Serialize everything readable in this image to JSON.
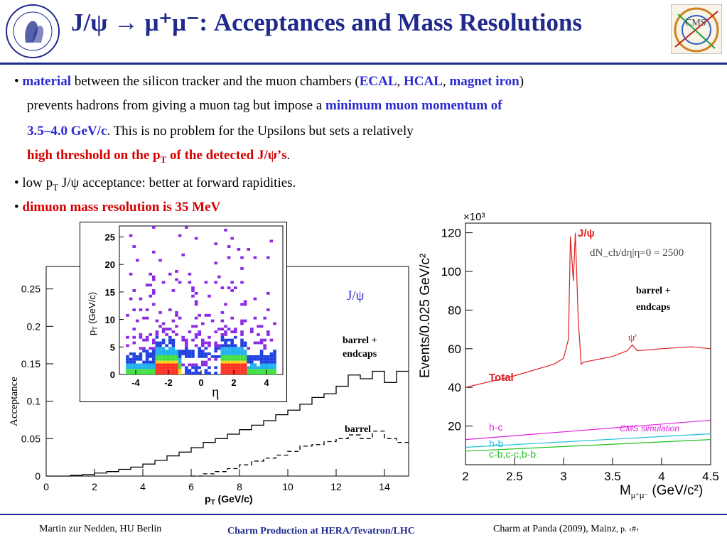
{
  "slide": {
    "title": "J/ψ → μ⁺μ⁻: Acceptances and Mass Resolutions",
    "logos": {
      "left": "humboldt-university-seal",
      "right": "cms-logo"
    }
  },
  "bullets": {
    "b1": {
      "bullet": "•",
      "material": "material",
      "t1": " between the silicon tracker and the muon chambers (",
      "ecal": "ECAL",
      "comma1": ", ",
      "hcal": "HCAL",
      "comma2": ", ",
      "magnet": "magnet iron",
      "close": ")",
      "line2a": "prevents hadrons from giving a muon tag but impose a ",
      "minmom": "minimum muon momentum of",
      "line3a": "3.5–4.0 GeV/c",
      "line3b": ". This is no problem for the Upsilons but sets a relatively",
      "line4a": "high threshold on the p",
      "line4sub": "T",
      "line4b": " of the detected J/ψ’s",
      "line4c": "."
    },
    "b2": {
      "bullet": "•",
      "t1": " low p",
      "sub": "T",
      "t2": " J/ψ acceptance: better at forward rapidities."
    },
    "b3": {
      "bullet": "•",
      "t1": " dimuon mass resolution is 35 MeV"
    }
  },
  "plots": {
    "acceptance": {
      "ylabel": "Acceptance",
      "xlabel_main": "p",
      "xlabel_sub": "T",
      "xlabel_tail": " (GeV/c)",
      "legend_jpsi": "J/ψ",
      "label_barrel_endcaps_1": "barrel +",
      "label_barrel_endcaps_2": "endcaps",
      "label_barrel": "barrel",
      "xticks": [
        "0",
        "2",
        "4",
        "6",
        "8",
        "10",
        "12",
        "14"
      ],
      "yticks": [
        "0",
        "0.05",
        "0.1",
        "0.15",
        "0.2",
        "0.25"
      ]
    },
    "inset": {
      "ylabel_main": "p",
      "ylabel_sub": "T",
      "ylabel_tail": " (GeV/c)",
      "xlabel": "η",
      "xticks": [
        "-4",
        "-2",
        "0",
        "2",
        "4"
      ],
      "yticks": [
        "0",
        "5",
        "10",
        "15",
        "20",
        "25"
      ]
    },
    "mass": {
      "ylabel": "Events/0.025 GeV/c²",
      "xlabel_main": "M",
      "xlabel_sub": "μ⁺μ⁻",
      "xlabel_tail": " (GeV/c²)",
      "exponent": "×10³",
      "label_jpsi": "J/ψ",
      "label_psi": "ψ'",
      "formula": "dN_ch/dη|η=0 = 2500",
      "label_barrel_endcaps_1": "barrel +",
      "label_barrel_endcaps_2": "endcaps",
      "label_total": "Total",
      "label_hc": "h-c",
      "label_hb": "h-b",
      "label_cb": "c-b,c-c,b-b",
      "label_cms": "CMS simulation",
      "xticks": [
        "2",
        "2.5",
        "3",
        "3.5",
        "4",
        "4.5"
      ],
      "yticks": [
        "20",
        "40",
        "60",
        "80",
        "100",
        "120"
      ],
      "colors": {
        "total": "#e02020",
        "hc": "#e020e0",
        "hb": "#20c0e0",
        "cb": "#20c020"
      }
    }
  },
  "chart_data": [
    {
      "type": "line",
      "title": "",
      "xlabel": "pT (GeV/c)",
      "ylabel": "Acceptance",
      "xlim": [
        0,
        15
      ],
      "ylim": [
        0,
        0.28
      ],
      "series": [
        {
          "name": "barrel + endcaps",
          "x": [
            0.25,
            0.75,
            1.25,
            1.75,
            2.25,
            2.75,
            3.25,
            3.75,
            4.25,
            4.75,
            5.25,
            5.75,
            6.25,
            6.75,
            7.25,
            7.75,
            8.25,
            8.75,
            9.25,
            9.75,
            10.25,
            10.75,
            11.25,
            11.75,
            12.25,
            12.75,
            13.25,
            13.75,
            14.25,
            14.75
          ],
          "values": [
            0.0,
            0.0,
            0.001,
            0.002,
            0.004,
            0.006,
            0.009,
            0.012,
            0.016,
            0.021,
            0.027,
            0.032,
            0.038,
            0.045,
            0.05,
            0.056,
            0.062,
            0.068,
            0.074,
            0.082,
            0.088,
            0.096,
            0.105,
            0.11,
            0.12,
            0.135,
            0.13,
            0.14,
            0.125,
            0.14
          ]
        },
        {
          "name": "barrel",
          "x": [
            6.25,
            6.75,
            7.25,
            7.75,
            8.25,
            8.75,
            9.25,
            9.75,
            10.25,
            10.75,
            11.25,
            11.75,
            12.25,
            12.75,
            13.25,
            13.75,
            14.25,
            14.75
          ],
          "values": [
            0.0,
            0.003,
            0.006,
            0.01,
            0.015,
            0.02,
            0.024,
            0.028,
            0.033,
            0.04,
            0.042,
            0.046,
            0.05,
            0.055,
            0.05,
            0.06,
            0.05,
            0.045
          ]
        }
      ]
    },
    {
      "type": "line",
      "title": "",
      "xlabel": "M μ+μ- (GeV/c²)",
      "ylabel": "Events/0.025 GeV/c² (×10³)",
      "xlim": [
        2,
        4.5
      ],
      "ylim": [
        0,
        125
      ],
      "series": [
        {
          "name": "Total",
          "x": [
            2.0,
            2.5,
            2.9,
            3.0,
            3.05,
            3.07,
            3.1,
            3.12,
            3.15,
            3.18,
            3.2,
            3.5,
            3.65,
            3.7,
            3.75,
            4.0,
            4.3,
            4.5
          ],
          "values": [
            40,
            46,
            52,
            55,
            65,
            118,
            95,
            120,
            75,
            52,
            53,
            56,
            59,
            62,
            59,
            60,
            61,
            60
          ]
        },
        {
          "name": "h-c",
          "x": [
            2.0,
            4.5
          ],
          "values": [
            13,
            23
          ]
        },
        {
          "name": "h-b",
          "x": [
            2.0,
            4.5
          ],
          "values": [
            9,
            16
          ]
        },
        {
          "name": "c-b,c-c,b-b",
          "x": [
            2.0,
            4.5
          ],
          "values": [
            7,
            13
          ]
        }
      ]
    }
  ],
  "footer": {
    "author": "Martin zur Nedden, HU Berlin",
    "talk": "Charm Production at HERA/Tevatron/LHC",
    "venue": "Charm at Panda (2009), Mainz",
    "page": ", p. ‹#›"
  }
}
